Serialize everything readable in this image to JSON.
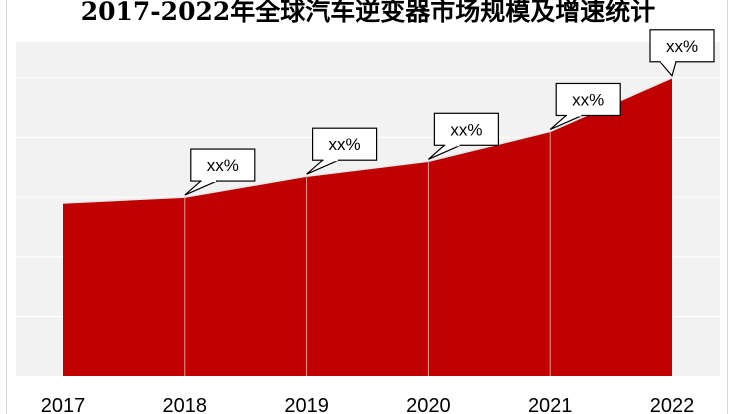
{
  "chart_data": {
    "type": "area",
    "title": "2017-2022年全球汽车逆变器市场规模及增速统计",
    "categories": [
      "2017",
      "2018",
      "2019",
      "2020",
      "2021",
      "2022"
    ],
    "values": [
      58,
      60,
      67,
      72,
      82,
      100
    ],
    "ylim": [
      0,
      112
    ],
    "grid": true,
    "show_y_axis_labels": false,
    "data_labels": [
      "",
      "xx%",
      "xx%",
      "xx%",
      "xx%",
      "xx%"
    ],
    "colors": {
      "area_fill": "#c00000",
      "plot_background": "#f2f2f2",
      "gridline": "#ffffff",
      "callout_border": "#000000",
      "callout_fill": "#ffffff"
    }
  }
}
